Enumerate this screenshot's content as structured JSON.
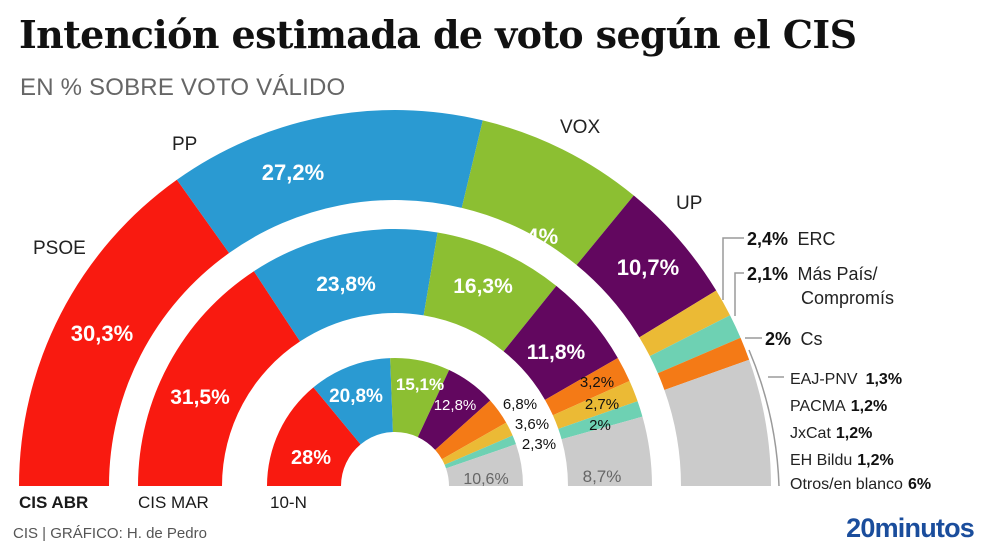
{
  "title": "Intención estimada de voto según el CIS",
  "subtitle": "EN % SOBRE VOTO VÁLIDO",
  "footer": {
    "source": "CIS  |  GRÁFICO: H. de Pedro",
    "logo": "20minutos"
  },
  "colors": {
    "PSOE": "#f91a10",
    "PP": "#2a9ad2",
    "VOX": "#8cbf32",
    "UP": "#62075f",
    "ERC": "#ebba35",
    "MasPais": "#6ed1b3",
    "Cs": "#f47a16",
    "Otros": "#cbcbcb",
    "logo": "#1a4d9c"
  },
  "chart_data": {
    "type": "pie",
    "subtype": "nested semicircle donut (parliament-style)",
    "title": "Intención estimada de voto según el CIS",
    "subtitle": "EN % SOBRE VOTO VÁLIDO",
    "unit": "% sobre voto válido",
    "parties": [
      "PSOE",
      "PP",
      "VOX",
      "UP",
      "Cs",
      "ERC",
      "Más País/Compromís",
      "Otros"
    ],
    "rings": [
      {
        "name": "CIS ABR",
        "order": [
          "PSOE",
          "PP",
          "VOX",
          "UP",
          "ERC",
          "Más País/Compromís",
          "Cs",
          "Otros"
        ],
        "values": [
          30.3,
          27.2,
          14.4,
          10.7,
          2.4,
          2.1,
          2.0,
          10.9
        ],
        "labels": [
          "30,3%",
          "27,2%",
          "14,4%",
          "10,7%",
          "2,4%",
          "2,1%",
          "2%",
          ""
        ]
      },
      {
        "name": "CIS MAR",
        "order": [
          "PSOE",
          "PP",
          "VOX",
          "UP",
          "Cs",
          "ERC",
          "Más País/Compromís",
          "Otros"
        ],
        "values": [
          31.5,
          23.8,
          16.3,
          11.8,
          3.2,
          2.7,
          2.0,
          8.7
        ],
        "labels": [
          "31,5%",
          "23,8%",
          "16,3%",
          "11,8%",
          "3,2%",
          "2,7%",
          "2%",
          "8,7%"
        ]
      },
      {
        "name": "10-N",
        "order": [
          "PSOE",
          "PP",
          "VOX",
          "UP",
          "Cs",
          "ERC",
          "Más País/Compromís",
          "Otros"
        ],
        "values": [
          28.0,
          20.8,
          15.1,
          12.8,
          6.8,
          3.6,
          2.3,
          10.6
        ],
        "labels": [
          "28%",
          "20,8%",
          "15,1%",
          "12,8%",
          "6,8%",
          "3,6%",
          "2,3%",
          "10,6%"
        ]
      }
    ],
    "party_labels": [
      "PSOE",
      "PP",
      "VOX",
      "UP"
    ],
    "legend_outer": [
      {
        "pct": "2,4%",
        "name": "ERC"
      },
      {
        "pct": "2,1%",
        "name": "Más País/",
        "name2": "Compromís"
      },
      {
        "pct": "2%",
        "name": "Cs"
      }
    ],
    "otros_breakdown": [
      {
        "name": "EAJ-PNV",
        "pct": "1,3%",
        "value": 1.3
      },
      {
        "name": "PACMA",
        "pct": "1,2%",
        "value": 1.2
      },
      {
        "name": "JxCat",
        "pct": "1,2%",
        "value": 1.2
      },
      {
        "name": "EH Bildu",
        "pct": "1,2%",
        "value": 1.2
      },
      {
        "name": "Otros/en blanco",
        "pct": "6%",
        "value": 6.0
      }
    ],
    "legend": "right"
  }
}
